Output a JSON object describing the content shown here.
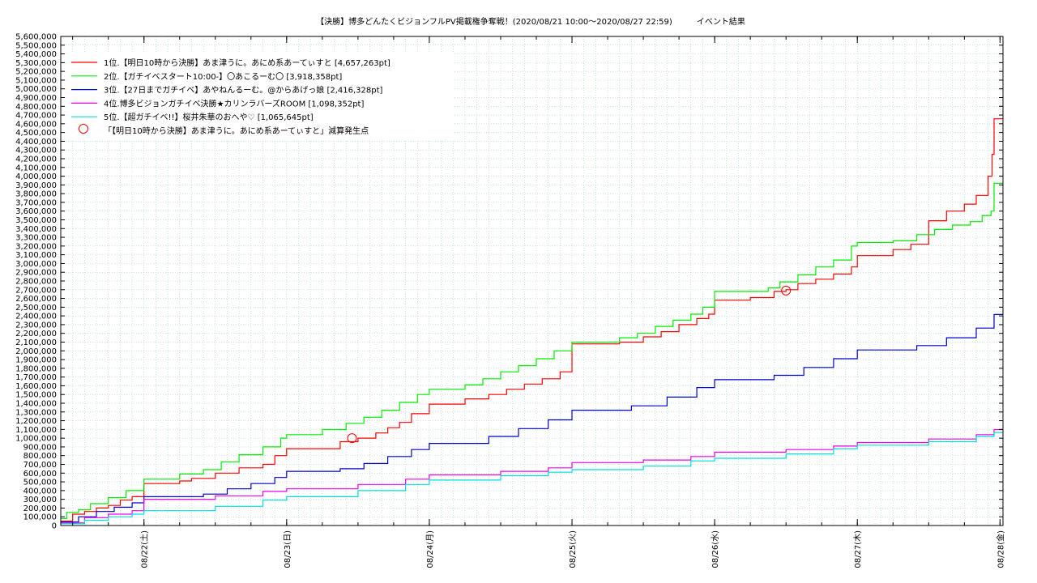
{
  "chart_data": {
    "type": "line",
    "title": "【決勝】博多どんたくビジョンフルPV掲載権争奪戦！(2020/08/21 10:00〜2020/08/27 22:59)　　　イベント結果",
    "xlabel": "",
    "ylabel": "",
    "ylim": [
      0,
      5600000
    ],
    "y_step": 100000,
    "x_range": [
      "2020-08-21 10:00",
      "2020-08-28 00:30"
    ],
    "x_ticks": [
      {
        "date": "2020-08-22 00:00",
        "label": "08/22(土)"
      },
      {
        "date": "2020-08-23 00:00",
        "label": "08/23(日)"
      },
      {
        "date": "2020-08-24 00:00",
        "label": "08/24(月)"
      },
      {
        "date": "2020-08-25 00:00",
        "label": "08/25(火)"
      },
      {
        "date": "2020-08-26 00:00",
        "label": "08/26(水)"
      },
      {
        "date": "2020-08-27 00:00",
        "label": "08/27(木)"
      },
      {
        "date": "2020-08-28 00:00",
        "label": "08/28(金)"
      }
    ],
    "grid": true,
    "legend_position": "top-left",
    "series": [
      {
        "name": "1位.【明日10時から決勝】あま津うに。あにめ系あーてぃすと [4,657,263pt]",
        "color": "#ff0000",
        "points": [
          [
            "2020-08-21 10:00",
            50000
          ],
          [
            "2020-08-21 12:00",
            130000
          ],
          [
            "2020-08-21 14:00",
            160000
          ],
          [
            "2020-08-21 16:00",
            200000
          ],
          [
            "2020-08-21 18:00",
            230000
          ],
          [
            "2020-08-21 20:00",
            290000
          ],
          [
            "2020-08-21 22:00",
            330000
          ],
          [
            "2020-08-22 00:00",
            480000
          ],
          [
            "2020-08-22 06:00",
            510000
          ],
          [
            "2020-08-22 08:00",
            540000
          ],
          [
            "2020-08-22 12:00",
            600000
          ],
          [
            "2020-08-22 16:00",
            660000
          ],
          [
            "2020-08-22 20:00",
            700000
          ],
          [
            "2020-08-22 22:00",
            800000
          ],
          [
            "2020-08-23 00:00",
            880000
          ],
          [
            "2020-08-23 09:00",
            960000
          ],
          [
            "2020-08-23 12:00",
            1000000
          ],
          [
            "2020-08-23 15:00",
            1060000
          ],
          [
            "2020-08-23 17:00",
            1120000
          ],
          [
            "2020-08-23 19:00",
            1180000
          ],
          [
            "2020-08-23 21:00",
            1280000
          ],
          [
            "2020-08-24 00:00",
            1390000
          ],
          [
            "2020-08-24 06:00",
            1450000
          ],
          [
            "2020-08-24 10:00",
            1500000
          ],
          [
            "2020-08-24 13:00",
            1560000
          ],
          [
            "2020-08-24 16:00",
            1620000
          ],
          [
            "2020-08-24 19:00",
            1680000
          ],
          [
            "2020-08-24 22:00",
            1760000
          ],
          [
            "2020-08-25 00:00",
            2080000
          ],
          [
            "2020-08-25 08:00",
            2100000
          ],
          [
            "2020-08-25 12:00",
            2160000
          ],
          [
            "2020-08-25 15:00",
            2220000
          ],
          [
            "2020-08-25 18:00",
            2300000
          ],
          [
            "2020-08-25 21:00",
            2370000
          ],
          [
            "2020-08-25 23:00",
            2420000
          ],
          [
            "2020-08-26 00:00",
            2580000
          ],
          [
            "2020-08-26 06:00",
            2610000
          ],
          [
            "2020-08-26 10:00",
            2680000
          ],
          [
            "2020-08-26 12:00",
            2700000
          ],
          [
            "2020-08-26 14:00",
            2770000
          ],
          [
            "2020-08-26 17:00",
            2820000
          ],
          [
            "2020-08-26 20:00",
            2880000
          ],
          [
            "2020-08-26 23:00",
            2960000
          ],
          [
            "2020-08-27 00:00",
            3090000
          ],
          [
            "2020-08-27 06:00",
            3160000
          ],
          [
            "2020-08-27 09:00",
            3220000
          ],
          [
            "2020-08-27 12:00",
            3490000
          ],
          [
            "2020-08-27 15:00",
            3600000
          ],
          [
            "2020-08-27 18:00",
            3680000
          ],
          [
            "2020-08-27 20:00",
            3780000
          ],
          [
            "2020-08-27 22:00",
            4000000
          ],
          [
            "2020-08-27 22:40",
            4250000
          ],
          [
            "2020-08-27 23:00",
            4657263
          ],
          [
            "2020-08-28 00:30",
            4657263
          ]
        ]
      },
      {
        "name": "2位.【ガチイベスタート10:00-】〇あこるーむ〇 [3,918,358pt]",
        "color": "#00ee00",
        "points": [
          [
            "2020-08-21 10:00",
            80000
          ],
          [
            "2020-08-21 11:00",
            150000
          ],
          [
            "2020-08-21 13:00",
            180000
          ],
          [
            "2020-08-21 15:00",
            250000
          ],
          [
            "2020-08-21 18:00",
            320000
          ],
          [
            "2020-08-21 21:00",
            400000
          ],
          [
            "2020-08-22 00:00",
            530000
          ],
          [
            "2020-08-22 06:00",
            590000
          ],
          [
            "2020-08-22 10:00",
            640000
          ],
          [
            "2020-08-22 13:00",
            730000
          ],
          [
            "2020-08-22 16:00",
            810000
          ],
          [
            "2020-08-22 20:00",
            900000
          ],
          [
            "2020-08-22 23:00",
            1000000
          ],
          [
            "2020-08-23 00:00",
            1040000
          ],
          [
            "2020-08-23 06:00",
            1100000
          ],
          [
            "2020-08-23 10:00",
            1170000
          ],
          [
            "2020-08-23 13:00",
            1240000
          ],
          [
            "2020-08-23 16:00",
            1320000
          ],
          [
            "2020-08-23 19:00",
            1410000
          ],
          [
            "2020-08-23 22:00",
            1500000
          ],
          [
            "2020-08-24 00:00",
            1560000
          ],
          [
            "2020-08-24 06:00",
            1610000
          ],
          [
            "2020-08-24 09:00",
            1680000
          ],
          [
            "2020-08-24 12:00",
            1760000
          ],
          [
            "2020-08-24 15:00",
            1830000
          ],
          [
            "2020-08-24 18:00",
            1910000
          ],
          [
            "2020-08-24 21:00",
            2000000
          ],
          [
            "2020-08-25 00:00",
            2100000
          ],
          [
            "2020-08-25 08:00",
            2150000
          ],
          [
            "2020-08-25 11:00",
            2200000
          ],
          [
            "2020-08-25 14:00",
            2280000
          ],
          [
            "2020-08-25 17:00",
            2350000
          ],
          [
            "2020-08-25 20:00",
            2420000
          ],
          [
            "2020-08-25 22:00",
            2500000
          ],
          [
            "2020-08-26 00:00",
            2680000
          ],
          [
            "2020-08-26 09:00",
            2720000
          ],
          [
            "2020-08-26 11:00",
            2790000
          ],
          [
            "2020-08-26 14:00",
            2870000
          ],
          [
            "2020-08-26 17:00",
            2960000
          ],
          [
            "2020-08-26 20:00",
            3040000
          ],
          [
            "2020-08-26 23:00",
            3200000
          ],
          [
            "2020-08-27 00:00",
            3240000
          ],
          [
            "2020-08-27 06:00",
            3260000
          ],
          [
            "2020-08-27 10:00",
            3330000
          ],
          [
            "2020-08-27 13:00",
            3390000
          ],
          [
            "2020-08-27 16:00",
            3440000
          ],
          [
            "2020-08-27 19:00",
            3480000
          ],
          [
            "2020-08-27 21:00",
            3550000
          ],
          [
            "2020-08-27 22:30",
            3600000
          ],
          [
            "2020-08-27 23:00",
            3918358
          ],
          [
            "2020-08-28 00:30",
            3918358
          ]
        ]
      },
      {
        "name": "3位.【27日までガチイベ】あやねんるーむ。@からあげっ娘 [2,416,328pt]",
        "color": "#0000cc",
        "points": [
          [
            "2020-08-21 10:00",
            40000
          ],
          [
            "2020-08-21 13:00",
            100000
          ],
          [
            "2020-08-21 16:00",
            160000
          ],
          [
            "2020-08-21 19:00",
            210000
          ],
          [
            "2020-08-21 22:00",
            260000
          ],
          [
            "2020-08-22 00:00",
            330000
          ],
          [
            "2020-08-22 10:00",
            360000
          ],
          [
            "2020-08-22 14:00",
            420000
          ],
          [
            "2020-08-22 18:00",
            480000
          ],
          [
            "2020-08-22 22:00",
            550000
          ],
          [
            "2020-08-23 00:00",
            620000
          ],
          [
            "2020-08-23 09:00",
            650000
          ],
          [
            "2020-08-23 13:00",
            710000
          ],
          [
            "2020-08-23 17:00",
            790000
          ],
          [
            "2020-08-23 21:00",
            870000
          ],
          [
            "2020-08-24 00:00",
            940000
          ],
          [
            "2020-08-24 10:00",
            1020000
          ],
          [
            "2020-08-24 15:00",
            1110000
          ],
          [
            "2020-08-24 20:00",
            1210000
          ],
          [
            "2020-08-25 00:00",
            1320000
          ],
          [
            "2020-08-25 10:00",
            1370000
          ],
          [
            "2020-08-25 16:00",
            1470000
          ],
          [
            "2020-08-25 21:00",
            1580000
          ],
          [
            "2020-08-26 00:00",
            1670000
          ],
          [
            "2020-08-26 10:00",
            1720000
          ],
          [
            "2020-08-26 15:00",
            1810000
          ],
          [
            "2020-08-26 20:00",
            1910000
          ],
          [
            "2020-08-27 00:00",
            2010000
          ],
          [
            "2020-08-27 10:00",
            2060000
          ],
          [
            "2020-08-27 15:00",
            2150000
          ],
          [
            "2020-08-27 20:00",
            2260000
          ],
          [
            "2020-08-27 23:00",
            2416328
          ],
          [
            "2020-08-28 00:30",
            2416328
          ]
        ]
      },
      {
        "name": "4位.博多ビジョンガチイベ決勝★カリンラバーズROOM [1,098,352pt]",
        "color": "#ee00ee",
        "points": [
          [
            "2020-08-21 10:00",
            30000
          ],
          [
            "2020-08-21 14:00",
            90000
          ],
          [
            "2020-08-21 18:00",
            130000
          ],
          [
            "2020-08-21 22:00",
            170000
          ],
          [
            "2020-08-22 00:00",
            300000
          ],
          [
            "2020-08-22 12:00",
            340000
          ],
          [
            "2020-08-22 20:00",
            390000
          ],
          [
            "2020-08-23 00:00",
            420000
          ],
          [
            "2020-08-23 12:00",
            470000
          ],
          [
            "2020-08-23 20:00",
            530000
          ],
          [
            "2020-08-24 00:00",
            580000
          ],
          [
            "2020-08-24 12:00",
            620000
          ],
          [
            "2020-08-24 20:00",
            660000
          ],
          [
            "2020-08-25 00:00",
            720000
          ],
          [
            "2020-08-25 12:00",
            750000
          ],
          [
            "2020-08-25 20:00",
            790000
          ],
          [
            "2020-08-26 00:00",
            840000
          ],
          [
            "2020-08-26 12:00",
            870000
          ],
          [
            "2020-08-26 20:00",
            910000
          ],
          [
            "2020-08-27 00:00",
            950000
          ],
          [
            "2020-08-27 12:00",
            990000
          ],
          [
            "2020-08-27 20:00",
            1040000
          ],
          [
            "2020-08-27 23:00",
            1098352
          ],
          [
            "2020-08-28 00:30",
            1098352
          ]
        ]
      },
      {
        "name": "5位.【超ガチイベ!!】桜井朱華のおへや♡ [1,065,645pt]",
        "color": "#00dddd",
        "points": [
          [
            "2020-08-21 10:00",
            20000
          ],
          [
            "2020-08-21 14:00",
            60000
          ],
          [
            "2020-08-21 18:00",
            100000
          ],
          [
            "2020-08-21 22:00",
            130000
          ],
          [
            "2020-08-22 00:00",
            170000
          ],
          [
            "2020-08-22 12:00",
            220000
          ],
          [
            "2020-08-22 20:00",
            290000
          ],
          [
            "2020-08-23 00:00",
            330000
          ],
          [
            "2020-08-23 12:00",
            400000
          ],
          [
            "2020-08-23 20:00",
            470000
          ],
          [
            "2020-08-24 00:00",
            520000
          ],
          [
            "2020-08-24 12:00",
            570000
          ],
          [
            "2020-08-24 20:00",
            610000
          ],
          [
            "2020-08-25 00:00",
            640000
          ],
          [
            "2020-08-25 12:00",
            680000
          ],
          [
            "2020-08-25 20:00",
            740000
          ],
          [
            "2020-08-26 00:00",
            770000
          ],
          [
            "2020-08-26 12:00",
            820000
          ],
          [
            "2020-08-26 20:00",
            880000
          ],
          [
            "2020-08-27 00:00",
            920000
          ],
          [
            "2020-08-27 12:00",
            960000
          ],
          [
            "2020-08-27 20:00",
            1020000
          ],
          [
            "2020-08-27 23:00",
            1065645
          ],
          [
            "2020-08-28 00:30",
            1065645
          ]
        ]
      }
    ],
    "markers": {
      "name": "「【明日10時から決勝】あま津うに。あにめ系あーてぃすと」減算発生点",
      "color": "#ff0000",
      "points": [
        [
          "2020-08-23 11:00",
          1000000
        ],
        [
          "2020-08-26 12:00",
          2690000
        ]
      ]
    }
  }
}
